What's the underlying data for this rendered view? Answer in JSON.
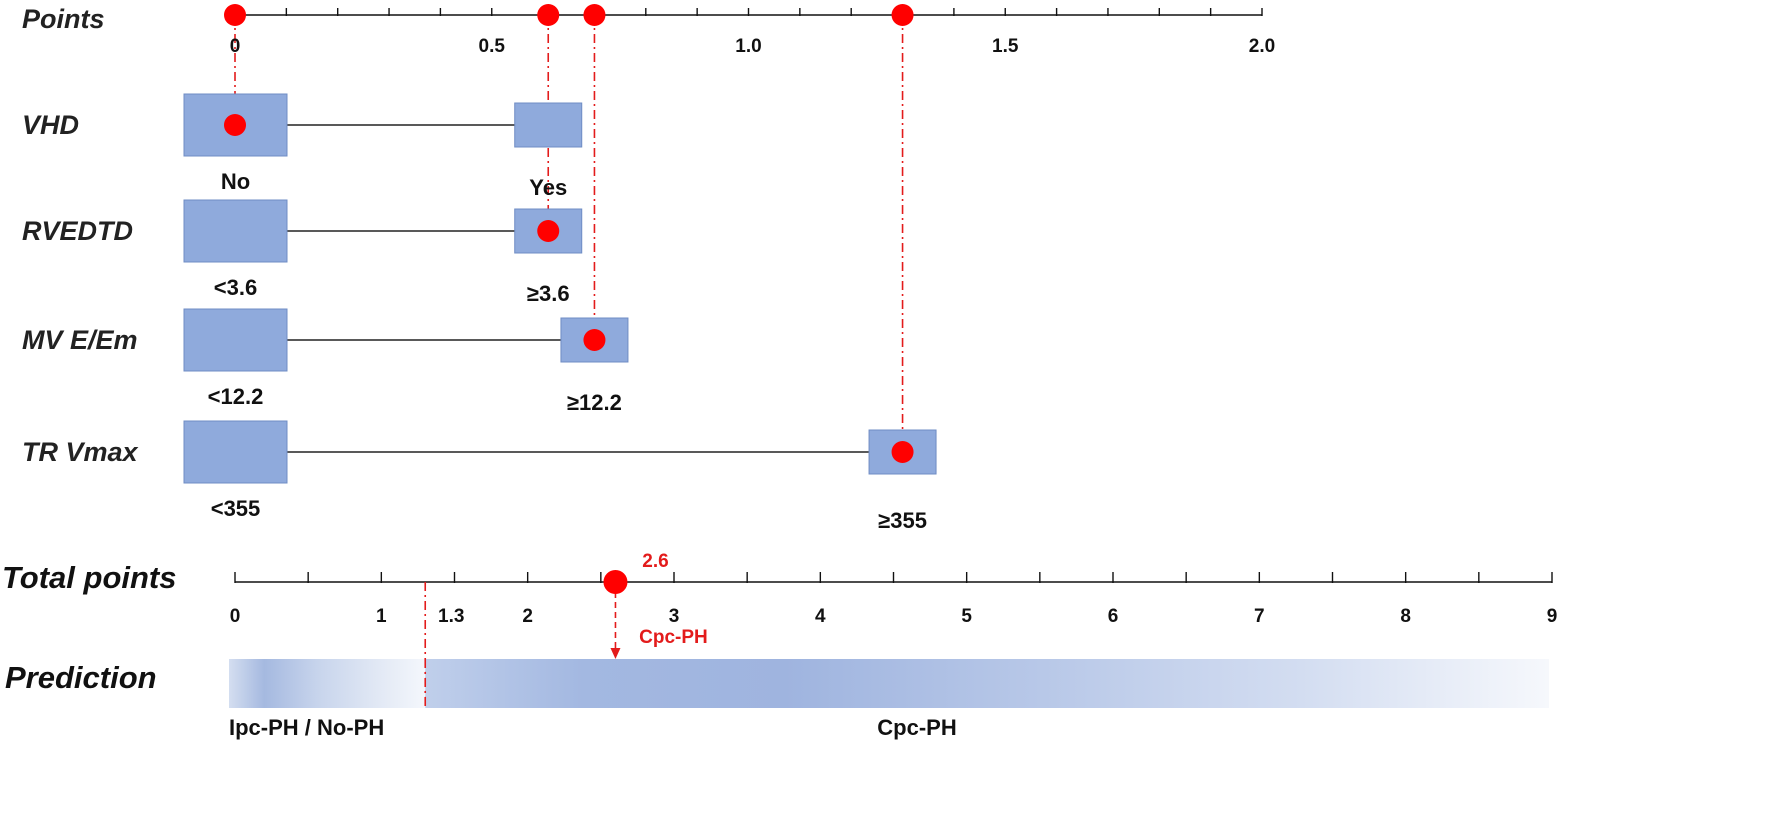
{
  "chart_data": {
    "type": "nomogram",
    "colors": {
      "marker": "#ff0000",
      "guide": "#e31b1b",
      "box_fill": "#8faadc",
      "box_stroke": "#6f8cc4",
      "axis": "#111111",
      "bar_dark": "#8ea6d6",
      "bar_light": "#f3f6fb"
    },
    "points_axis": {
      "label": "Points",
      "min": 0,
      "max": 2.0,
      "minor_step": 0.1,
      "labels": [
        {
          "value": 0,
          "text": "0"
        },
        {
          "value": 0.5,
          "text": "0.5"
        },
        {
          "value": 1.0,
          "text": "1.0"
        },
        {
          "value": 1.5,
          "text": "1.5"
        },
        {
          "value": 2.0,
          "text": "2.0"
        }
      ]
    },
    "variables": [
      {
        "name": "VHD",
        "levels": [
          {
            "label": "No",
            "points": 0
          },
          {
            "label": "Yes",
            "points": 0.61
          }
        ],
        "selected_points": 0
      },
      {
        "name": "RVEDTD",
        "levels": [
          {
            "label": "<3.6",
            "points": 0
          },
          {
            "label": "≥3.6",
            "points": 0.61
          }
        ],
        "selected_points": 0.61
      },
      {
        "name": "MV E/Em",
        "levels": [
          {
            "label": "<12.2",
            "points": 0
          },
          {
            "label": "≥12.2",
            "points": 0.7
          }
        ],
        "selected_points": 0.7
      },
      {
        "name": "TR Vmax",
        "levels": [
          {
            "label": "<355",
            "points": 0
          },
          {
            "label": "≥355",
            "points": 1.3
          }
        ],
        "selected_points": 1.3
      }
    ],
    "total_axis": {
      "label": "Total points",
      "min": 0,
      "max": 9,
      "labels": [
        {
          "value": 0,
          "text": "0"
        },
        {
          "value": 1,
          "text": "1"
        },
        {
          "value": 2,
          "text": "2"
        },
        {
          "value": 3,
          "text": "3"
        },
        {
          "value": 4,
          "text": "4"
        },
        {
          "value": 5,
          "text": "5"
        },
        {
          "value": 6,
          "text": "6"
        },
        {
          "value": 7,
          "text": "7"
        },
        {
          "value": 8,
          "text": "8"
        },
        {
          "value": 9,
          "text": "9"
        }
      ],
      "cutoff": {
        "value": 1.3,
        "text": "1.3"
      },
      "total": {
        "value": 2.6,
        "text": "2.6"
      },
      "result_text": "Cpc-PH"
    },
    "prediction": {
      "label": "Prediction",
      "left_label": "Ipc-PH / No-PH",
      "right_label": "Cpc-PH"
    }
  }
}
